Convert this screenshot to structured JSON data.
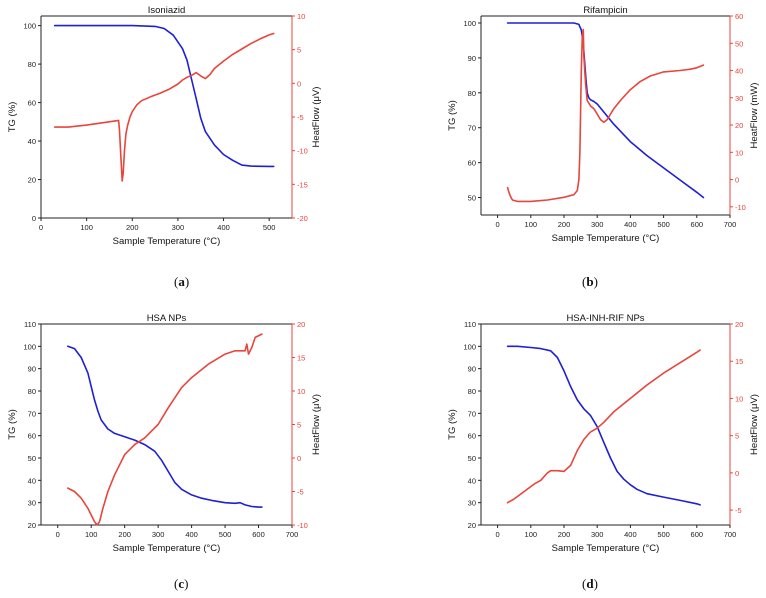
{
  "colors": {
    "tg": "#1f1fd6",
    "heatflow": "#e8453c",
    "axis": "#222222",
    "heatflow_axis": "#e8453c"
  },
  "panel_labels": [
    {
      "open": "(",
      "letter": "a",
      "close": ")"
    },
    {
      "open": "(",
      "letter": "b",
      "close": ")"
    },
    {
      "open": "(",
      "letter": "c",
      "close": ")"
    },
    {
      "open": "(",
      "letter": "d",
      "close": ")"
    }
  ],
  "chart_data": [
    {
      "type": "line",
      "title": "Isoniazid",
      "xlabel": "Sample Temperature (°C)",
      "ylabel": "TG (%)",
      "y2label": "HeatFlow (μV)",
      "xlim": [
        0,
        550
      ],
      "xticks": [
        0,
        100,
        200,
        300,
        400,
        500
      ],
      "ylim": [
        0,
        105
      ],
      "yticks": [
        0,
        20,
        40,
        60,
        80,
        100
      ],
      "y2lim": [
        -20,
        10
      ],
      "y2ticks": [
        -20,
        -15,
        -10,
        -5,
        0,
        5,
        10
      ],
      "series": [
        {
          "name": "TG",
          "axis": "left",
          "x": [
            30,
            100,
            200,
            250,
            270,
            290,
            310,
            320,
            330,
            340,
            350,
            360,
            380,
            400,
            420,
            440,
            460,
            500,
            510
          ],
          "y": [
            100,
            100,
            100,
            99.6,
            98.5,
            95,
            88,
            82,
            72,
            62,
            52,
            45,
            38,
            33,
            30,
            27.5,
            27,
            26.8,
            26.8
          ]
        },
        {
          "name": "HeatFlow",
          "axis": "right",
          "x": [
            30,
            60,
            100,
            140,
            170,
            172,
            175,
            178,
            180,
            183,
            186,
            190,
            195,
            200,
            210,
            220,
            240,
            260,
            280,
            300,
            310,
            320,
            330,
            340,
            350,
            360,
            370,
            380,
            400,
            420,
            440,
            460,
            480,
            500,
            510
          ],
          "y": [
            -6.5,
            -6.5,
            -6.2,
            -5.8,
            -5.5,
            -7,
            -11,
            -14.5,
            -13.5,
            -10,
            -7.5,
            -6.2,
            -5,
            -4.2,
            -3.2,
            -2.6,
            -2,
            -1.5,
            -0.9,
            -0.1,
            0.5,
            0.9,
            1.2,
            1.6,
            1.1,
            0.7,
            1.3,
            2.2,
            3.3,
            4.3,
            5.1,
            5.9,
            6.6,
            7.2,
            7.4
          ]
        }
      ]
    },
    {
      "type": "line",
      "title": "Rifampicin",
      "xlabel": "Sample Temperature (°C)",
      "ylabel": "TG (%)",
      "y2label": "HeatFlow (mW)",
      "xlim": [
        -50,
        700
      ],
      "xticks": [
        0,
        100,
        200,
        300,
        400,
        500,
        600,
        700
      ],
      "ylim": [
        45,
        102
      ],
      "yticks": [
        50,
        60,
        70,
        80,
        90,
        100
      ],
      "y2lim": [
        -13,
        60
      ],
      "y2ticks": [
        -10,
        0,
        10,
        20,
        30,
        40,
        50,
        60
      ],
      "series": [
        {
          "name": "TG",
          "axis": "left",
          "x": [
            30,
            100,
            200,
            230,
            245,
            252,
            258,
            262,
            266,
            270,
            275,
            280,
            290,
            300,
            320,
            350,
            400,
            450,
            500,
            550,
            600,
            620
          ],
          "y": [
            100,
            100,
            100,
            100,
            99.6,
            98,
            94,
            89,
            84,
            80,
            78.5,
            78,
            77.5,
            76.8,
            74.5,
            71,
            66,
            62,
            58.5,
            55,
            51.5,
            50
          ]
        },
        {
          "name": "HeatFlow",
          "axis": "right",
          "x": [
            30,
            35,
            40,
            45,
            60,
            100,
            150,
            200,
            230,
            240,
            245,
            248,
            250,
            252,
            255,
            258,
            260,
            265,
            270,
            280,
            290,
            300,
            310,
            320,
            330,
            340,
            350,
            370,
            400,
            430,
            460,
            500,
            550,
            580,
            600,
            620
          ],
          "y": [
            -3,
            -5,
            -6.5,
            -7.5,
            -8,
            -8,
            -7.5,
            -6.5,
            -5.5,
            -4,
            0,
            10,
            25,
            40,
            53,
            55,
            45,
            35,
            29,
            27,
            26,
            24,
            22,
            21,
            22,
            24,
            26,
            29,
            33,
            36,
            38,
            39.5,
            40,
            40.5,
            41,
            42
          ]
        }
      ]
    },
    {
      "type": "line",
      "title": "HSA NPs",
      "xlabel": "Sample Temperature (°C)",
      "ylabel": "TG (%)",
      "y2label": "HeatFlow (μV)",
      "xlim": [
        -50,
        700
      ],
      "xticks": [
        0,
        100,
        200,
        300,
        400,
        500,
        600,
        700
      ],
      "ylim": [
        20,
        110
      ],
      "yticks": [
        20,
        30,
        40,
        50,
        60,
        70,
        80,
        90,
        100,
        110
      ],
      "y2lim": [
        -10,
        20
      ],
      "y2ticks": [
        -10,
        -5,
        0,
        5,
        10,
        15,
        20
      ],
      "series": [
        {
          "name": "TG",
          "axis": "left",
          "x": [
            30,
            50,
            70,
            90,
            100,
            110,
            120,
            130,
            150,
            170,
            200,
            230,
            260,
            290,
            310,
            330,
            350,
            370,
            400,
            430,
            460,
            500,
            530,
            545,
            560,
            580,
            600,
            610
          ],
          "y": [
            100,
            99,
            95,
            88,
            82,
            76,
            71,
            67,
            63,
            61,
            59.5,
            58,
            56,
            53,
            49,
            44,
            39,
            36,
            33.5,
            32,
            31,
            30,
            29.7,
            30,
            29,
            28.3,
            28,
            28
          ]
        },
        {
          "name": "HeatFlow",
          "axis": "right",
          "x": [
            30,
            50,
            70,
            90,
            100,
            110,
            118,
            125,
            135,
            150,
            170,
            200,
            230,
            260,
            280,
            300,
            330,
            370,
            400,
            450,
            500,
            530,
            550,
            560,
            565,
            570,
            580,
            590,
            610
          ],
          "y": [
            -4.5,
            -5,
            -6,
            -7.5,
            -8.5,
            -9.5,
            -10,
            -9.5,
            -7.5,
            -5,
            -2.5,
            0.5,
            2,
            3,
            4,
            5,
            7.5,
            10.5,
            12,
            14,
            15.5,
            16,
            16,
            16,
            17,
            15.5,
            16.5,
            18,
            18.5
          ]
        }
      ]
    },
    {
      "type": "line",
      "title": "HSA-INH-RIF NPs",
      "xlabel": "Sample Temperature (°C)",
      "ylabel": "TG (%)",
      "y2label": "HeatFlow (μV)",
      "xlim": [
        -50,
        700
      ],
      "xticks": [
        0,
        100,
        200,
        300,
        400,
        500,
        600,
        700
      ],
      "ylim": [
        20,
        110
      ],
      "yticks": [
        20,
        30,
        40,
        50,
        60,
        70,
        80,
        90,
        100,
        110
      ],
      "y2lim": [
        -7,
        20
      ],
      "y2ticks": [
        -5,
        0,
        5,
        10,
        15,
        20
      ],
      "series": [
        {
          "name": "TG",
          "axis": "left",
          "x": [
            30,
            60,
            100,
            130,
            160,
            180,
            200,
            220,
            240,
            260,
            280,
            300,
            320,
            340,
            360,
            380,
            400,
            420,
            450,
            500,
            550,
            600,
            610
          ],
          "y": [
            100,
            100,
            99.5,
            99,
            98,
            95,
            89,
            82,
            76,
            72,
            69,
            64,
            57,
            50,
            44,
            40.5,
            38,
            36,
            34,
            32.5,
            31,
            29.5,
            29
          ]
        },
        {
          "name": "HeatFlow",
          "axis": "right",
          "x": [
            30,
            50,
            80,
            110,
            130,
            150,
            160,
            180,
            200,
            220,
            240,
            260,
            280,
            300,
            320,
            350,
            400,
            450,
            500,
            550,
            600,
            610
          ],
          "y": [
            -4,
            -3.5,
            -2.5,
            -1.5,
            -1,
            0,
            0.3,
            0.3,
            0.2,
            1,
            3,
            4.5,
            5.5,
            6,
            6.8,
            8.2,
            10,
            11.8,
            13.4,
            14.8,
            16.2,
            16.5
          ]
        }
      ]
    }
  ]
}
